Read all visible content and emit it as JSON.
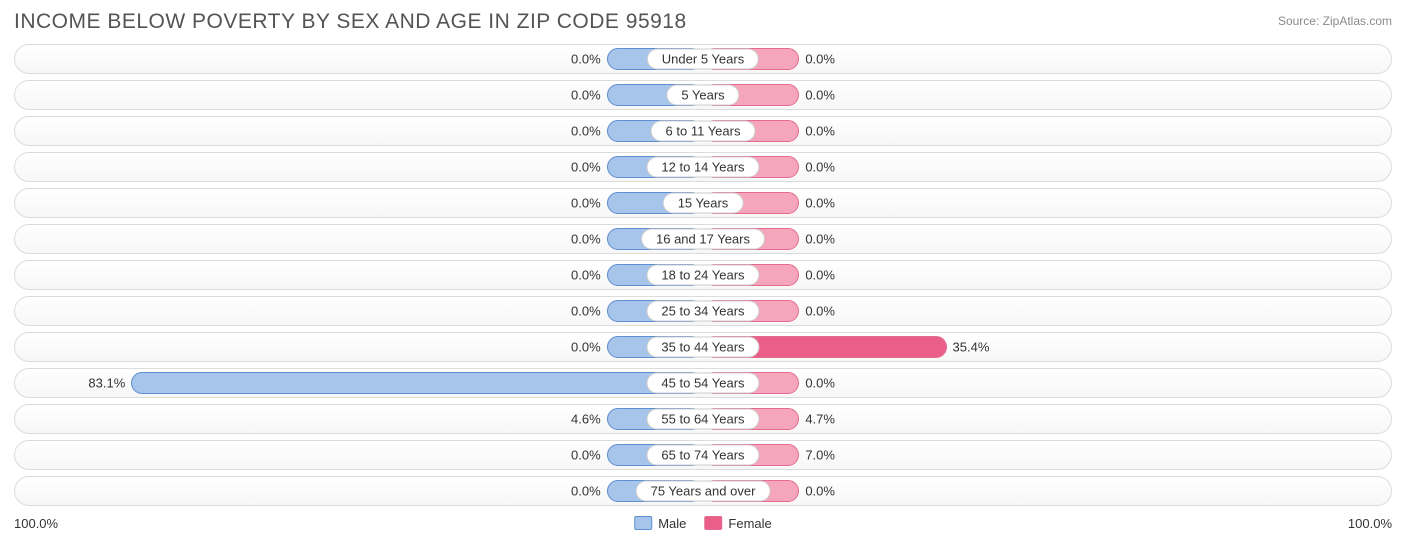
{
  "title": "INCOME BELOW POVERTY BY SEX AND AGE IN ZIP CODE 95918",
  "source": "Source: ZipAtlas.com",
  "chart": {
    "type": "diverging-bar",
    "male_color": "#a7c4ea",
    "male_border": "#5f8fcf",
    "female_color": "#f5a6bd",
    "female_border": "#e46a8f",
    "female_hot_color": "#ea5f89",
    "track_border": "#dcdcdc",
    "label_bg": "#ffffff",
    "label_border": "#cccccc",
    "text_color": "#333333",
    "min_bar_pct": 14,
    "axis_left": "100.0%",
    "axis_right": "100.0%",
    "rows": [
      {
        "category": "Under 5 Years",
        "male": 0.0,
        "female": 0.0
      },
      {
        "category": "5 Years",
        "male": 0.0,
        "female": 0.0
      },
      {
        "category": "6 to 11 Years",
        "male": 0.0,
        "female": 0.0
      },
      {
        "category": "12 to 14 Years",
        "male": 0.0,
        "female": 0.0
      },
      {
        "category": "15 Years",
        "male": 0.0,
        "female": 0.0
      },
      {
        "category": "16 and 17 Years",
        "male": 0.0,
        "female": 0.0
      },
      {
        "category": "18 to 24 Years",
        "male": 0.0,
        "female": 0.0
      },
      {
        "category": "25 to 34 Years",
        "male": 0.0,
        "female": 0.0
      },
      {
        "category": "35 to 44 Years",
        "male": 0.0,
        "female": 35.4
      },
      {
        "category": "45 to 54 Years",
        "male": 83.1,
        "female": 0.0
      },
      {
        "category": "55 to 64 Years",
        "male": 4.6,
        "female": 4.7
      },
      {
        "category": "65 to 74 Years",
        "male": 0.0,
        "female": 7.0
      },
      {
        "category": "75 Years and over",
        "male": 0.0,
        "female": 0.0
      }
    ]
  },
  "legend": {
    "male": "Male",
    "female": "Female"
  }
}
